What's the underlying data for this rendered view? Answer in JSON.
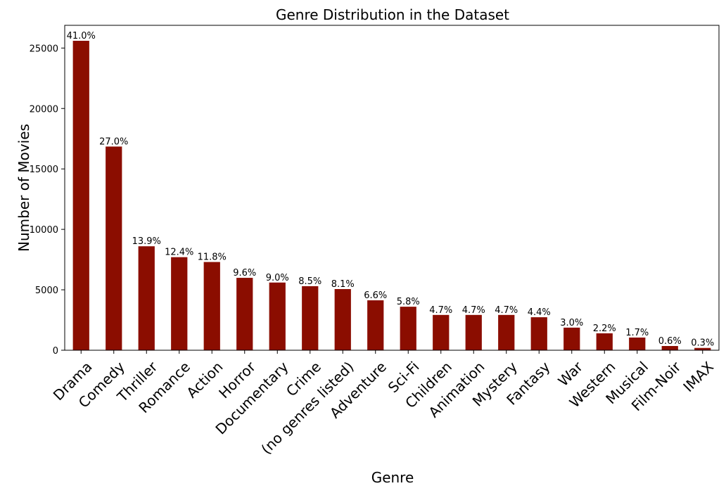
{
  "chart_data": {
    "type": "bar",
    "title": "Genre Distribution in the Dataset",
    "xlabel": "Genre",
    "ylabel": "Number of Movies",
    "ylim": [
      0,
      26880
    ],
    "yticks": [
      0,
      5000,
      10000,
      15000,
      20000,
      25000
    ],
    "grid": false,
    "bar_color": "#8b0d00",
    "categories": [
      "Drama",
      "Comedy",
      "Thriller",
      "Romance",
      "Action",
      "Horror",
      "Documentary",
      "Crime",
      "(no genres listed)",
      "Adventure",
      "Sci-Fi",
      "Children",
      "Animation",
      "Mystery",
      "Fantasy",
      "War",
      "Western",
      "Musical",
      "Film-Noir",
      "IMAX"
    ],
    "values": [
      25600,
      16850,
      8600,
      7700,
      7300,
      5990,
      5600,
      5300,
      5060,
      4130,
      3600,
      2920,
      2920,
      2920,
      2730,
      1870,
      1400,
      1050,
      350,
      190
    ],
    "labels": [
      "41.0%",
      "27.0%",
      "13.9%",
      "12.4%",
      "11.8%",
      "9.6%",
      "9.0%",
      "8.5%",
      "8.1%",
      "6.6%",
      "5.8%",
      "4.7%",
      "4.7%",
      "4.7%",
      "4.4%",
      "3.0%",
      "2.2%",
      "1.7%",
      "0.6%",
      "0.3%"
    ]
  }
}
